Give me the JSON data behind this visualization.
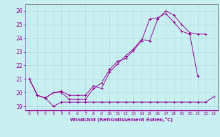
{
  "xlabel": "Windchill (Refroidissement éolien,°C)",
  "background_color": "#c8f0f0",
  "grid_color": "#aadddd",
  "line_color": "#990099",
  "xlim": [
    -0.5,
    23.5
  ],
  "ylim": [
    18.7,
    26.5
  ],
  "yticks": [
    19,
    20,
    21,
    22,
    23,
    24,
    25,
    26
  ],
  "xticks": [
    0,
    1,
    2,
    3,
    4,
    5,
    6,
    7,
    8,
    9,
    10,
    11,
    12,
    13,
    14,
    15,
    16,
    17,
    18,
    19,
    20,
    21,
    22,
    23
  ],
  "line1_x": [
    0,
    1,
    2,
    3,
    4,
    5,
    6,
    7,
    8,
    9,
    10,
    11,
    12,
    13,
    14,
    15,
    16,
    17,
    18,
    19,
    20,
    21,
    22,
    23
  ],
  "line1_y": [
    21.0,
    19.8,
    19.6,
    19.0,
    19.3,
    19.3,
    19.3,
    19.3,
    19.3,
    19.3,
    19.3,
    19.3,
    19.3,
    19.3,
    19.3,
    19.3,
    19.3,
    19.3,
    19.3,
    19.3,
    19.3,
    19.3,
    19.3,
    19.7
  ],
  "line2_x": [
    0,
    1,
    2,
    3,
    4,
    5,
    6,
    7,
    8,
    9,
    10,
    11,
    12,
    13,
    14,
    15,
    16,
    17,
    18,
    19,
    20,
    21,
    22,
    23
  ],
  "line2_y": [
    21.0,
    19.8,
    19.6,
    20.0,
    20.0,
    19.5,
    19.5,
    19.5,
    20.3,
    20.7,
    21.7,
    22.3,
    22.5,
    23.1,
    23.8,
    25.4,
    25.5,
    25.8,
    25.2,
    24.5,
    24.3,
    21.2,
    null,
    null
  ],
  "line3_x": [
    0,
    1,
    2,
    3,
    4,
    5,
    6,
    7,
    8,
    9,
    10,
    11,
    12,
    13,
    14,
    15,
    16,
    17,
    18,
    19,
    20,
    21,
    22,
    23
  ],
  "line3_y": [
    21.0,
    19.8,
    19.6,
    20.0,
    20.1,
    19.8,
    19.8,
    19.8,
    20.5,
    20.3,
    21.5,
    22.1,
    22.7,
    23.2,
    23.9,
    23.8,
    25.4,
    26.0,
    25.7,
    25.0,
    24.4,
    24.3,
    24.3,
    null
  ]
}
